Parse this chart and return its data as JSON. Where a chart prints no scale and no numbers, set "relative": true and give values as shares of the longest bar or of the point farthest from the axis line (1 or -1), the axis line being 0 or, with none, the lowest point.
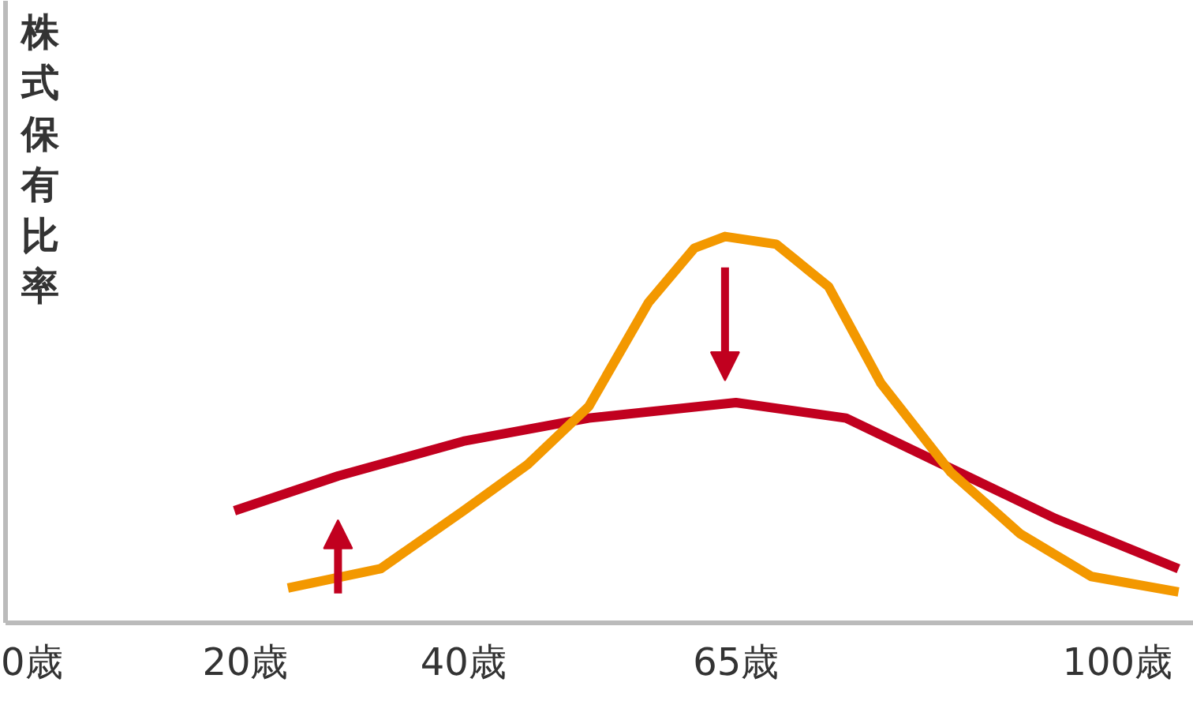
{
  "chart_data": {
    "type": "line",
    "ylabel": "株式保有比率",
    "relative": true,
    "xlim": [
      -2,
      107
    ],
    "xticks": [
      {
        "value": 0,
        "label": "0歳"
      },
      {
        "value": 20,
        "label": "20歳"
      },
      {
        "value": 40,
        "label": "40歳"
      },
      {
        "value": 65,
        "label": "65歳"
      },
      {
        "value": 100,
        "label": "100歳"
      }
    ],
    "series": [
      {
        "color": "#c1001f",
        "x": [
          19.0,
          28.5,
          40,
          51.5,
          65,
          75.1,
          84.7,
          94.3,
          105.6
        ],
        "values": [
          0.29,
          0.38,
          0.47,
          0.53,
          0.57,
          0.53,
          0.4,
          0.27,
          0.14
        ]
      },
      {
        "color": "#f39800",
        "x": [
          23.9,
          32.4,
          40,
          45.9,
          51.5,
          57.0,
          61.2,
          64.0,
          68.7,
          73.5,
          78.3,
          84.7,
          91.1,
          97.6,
          105.6
        ],
        "values": [
          0.09,
          0.14,
          0.29,
          0.41,
          0.56,
          0.83,
          0.97,
          1.0,
          0.98,
          0.87,
          0.62,
          0.39,
          0.23,
          0.12,
          0.08
        ]
      }
    ],
    "grid": false,
    "marker": "none",
    "line_style": "solid"
  }
}
